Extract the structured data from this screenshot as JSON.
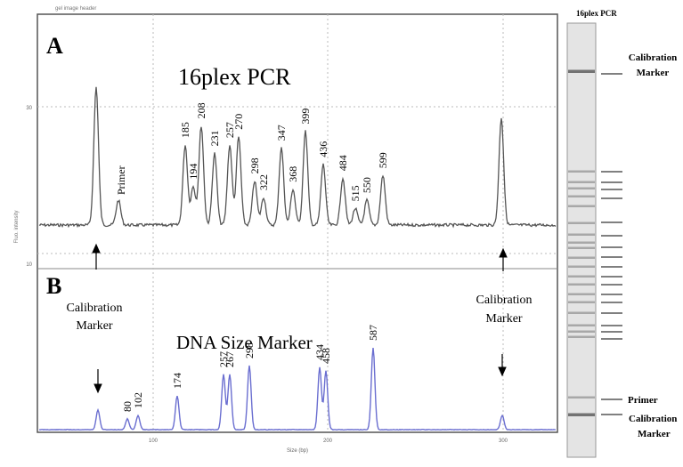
{
  "top_text": "gel image header",
  "panels": {
    "a_letter": "A",
    "a_title": "16plex PCR",
    "b_letter": "B",
    "b_title": "DNA Size Marker",
    "y_tick_high": "30",
    "y_tick_low": "10",
    "y_axis_label": "Fluo. intensity",
    "x_ticks": [
      "100",
      "200",
      "300"
    ],
    "x_axis_label": "Size (bp)"
  },
  "annotations": {
    "primer": "Primer",
    "calibration_line1": "Calibration",
    "calibration_line2": "Marker"
  },
  "gel": {
    "title": "16plex PCR",
    "calibration_line1": "Calibration",
    "calibration_line2": "Marker",
    "primer": "Primer"
  },
  "colors": {
    "trace_a": "#555555",
    "trace_b": "#6a6ed0",
    "band": "#6b6b6b",
    "lane_bg": "#e4e4e4"
  },
  "chart_data": [
    {
      "type": "line",
      "title": "16plex PCR",
      "panel": "A",
      "baseline": 0,
      "peaks": [
        {
          "label": "",
          "role": "calibration",
          "height": 1.0
        },
        {
          "label": "Primer",
          "height": 0.18
        },
        {
          "label": "185",
          "height": 0.58
        },
        {
          "label": "194",
          "height": 0.28
        },
        {
          "label": "208",
          "height": 0.72
        },
        {
          "label": "231",
          "height": 0.52
        },
        {
          "label": "257",
          "height": 0.58
        },
        {
          "label": "270",
          "height": 0.64
        },
        {
          "label": "298",
          "height": 0.32
        },
        {
          "label": "322",
          "height": 0.2
        },
        {
          "label": "347",
          "height": 0.56
        },
        {
          "label": "368",
          "height": 0.26
        },
        {
          "label": "399",
          "height": 0.68
        },
        {
          "label": "436",
          "height": 0.44
        },
        {
          "label": "484",
          "height": 0.34
        },
        {
          "label": "515",
          "height": 0.12
        },
        {
          "label": "550",
          "height": 0.18
        },
        {
          "label": "599",
          "height": 0.36
        },
        {
          "label": "",
          "role": "calibration",
          "height": 0.78
        }
      ],
      "y_ticks": [
        "30",
        "10"
      ]
    },
    {
      "type": "line",
      "title": "DNA Size Marker",
      "panel": "B",
      "peaks": [
        {
          "label": "",
          "role": "calibration",
          "height": 0.22
        },
        {
          "label": "80",
          "height": 0.12
        },
        {
          "label": "102",
          "height": 0.16
        },
        {
          "label": "174",
          "height": 0.38
        },
        {
          "label": "257",
          "height": 0.62
        },
        {
          "label": "267",
          "height": 0.62
        },
        {
          "label": "298",
          "height": 0.72
        },
        {
          "label": "434",
          "height": 0.7
        },
        {
          "label": "458",
          "height": 0.66
        },
        {
          "label": "587",
          "height": 0.92
        },
        {
          "label": "",
          "role": "calibration",
          "height": 0.16
        }
      ],
      "x_ticks": [
        "100",
        "200",
        "300"
      ]
    }
  ]
}
